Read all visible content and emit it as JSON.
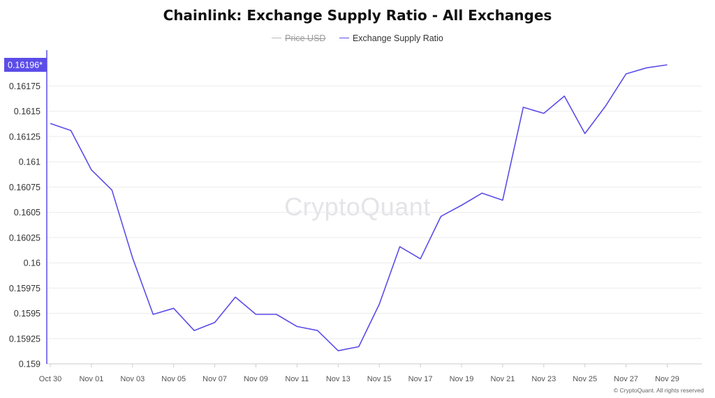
{
  "title": "Chainlink: Exchange Supply Ratio - All Exchanges",
  "legend": [
    {
      "label": "Price USD",
      "color": "#bbbbbb",
      "hidden": true
    },
    {
      "label": "Exchange Supply Ratio",
      "color": "#5b4ce8",
      "hidden": false
    }
  ],
  "watermark": "CryptoQuant",
  "copyright": "© CryptoQuant. All rights reserved",
  "current_value_label": "0.16196*",
  "chart_data": {
    "type": "line",
    "title": "Chainlink: Exchange Supply Ratio - All Exchanges",
    "xlabel": "",
    "ylabel": "",
    "ylim": [
      0.159,
      0.16196
    ],
    "y_ticks": [
      "0.16196*",
      "0.16175",
      "0.1615",
      "0.16125",
      "0.161",
      "0.16075",
      "0.1605",
      "0.16025",
      "0.16",
      "0.15975",
      "0.1595",
      "0.15925",
      "0.159"
    ],
    "y_tick_values": [
      0.16196,
      0.16175,
      0.1615,
      0.16125,
      0.161,
      0.16075,
      0.1605,
      0.16025,
      0.16,
      0.15975,
      0.1595,
      0.15925,
      0.159
    ],
    "x_ticks": [
      "Oct 30",
      "Nov 01",
      "Nov 03",
      "Nov 05",
      "Nov 07",
      "Nov 09",
      "Nov 11",
      "Nov 13",
      "Nov 15",
      "Nov 17",
      "Nov 19",
      "Nov 21",
      "Nov 23",
      "Nov 25",
      "Nov 27",
      "Nov 29"
    ],
    "grid": true,
    "legend_position": "top-center",
    "series": [
      {
        "name": "Exchange Supply Ratio",
        "color": "#5b4ce8",
        "x": [
          "Oct 30",
          "Oct 31",
          "Nov 01",
          "Nov 02",
          "Nov 03",
          "Nov 04",
          "Nov 05",
          "Nov 06",
          "Nov 07",
          "Nov 08",
          "Nov 09",
          "Nov 10",
          "Nov 11",
          "Nov 12",
          "Nov 13",
          "Nov 14",
          "Nov 15",
          "Nov 16",
          "Nov 17",
          "Nov 18",
          "Nov 19",
          "Nov 20",
          "Nov 21",
          "Nov 22",
          "Nov 23",
          "Nov 24",
          "Nov 25",
          "Nov 26",
          "Nov 27",
          "Nov 28",
          "Nov 29"
        ],
        "values": [
          0.16138,
          0.16131,
          0.16092,
          0.16072,
          0.16005,
          0.15949,
          0.15955,
          0.15933,
          0.15941,
          0.15966,
          0.15949,
          0.15949,
          0.15937,
          0.15933,
          0.15913,
          0.15917,
          0.15959,
          0.16016,
          0.16004,
          0.16046,
          0.16057,
          0.16069,
          0.16062,
          0.16154,
          0.16148,
          0.16165,
          0.16128,
          0.16155,
          0.16187,
          0.16193,
          0.16196
        ]
      }
    ]
  }
}
